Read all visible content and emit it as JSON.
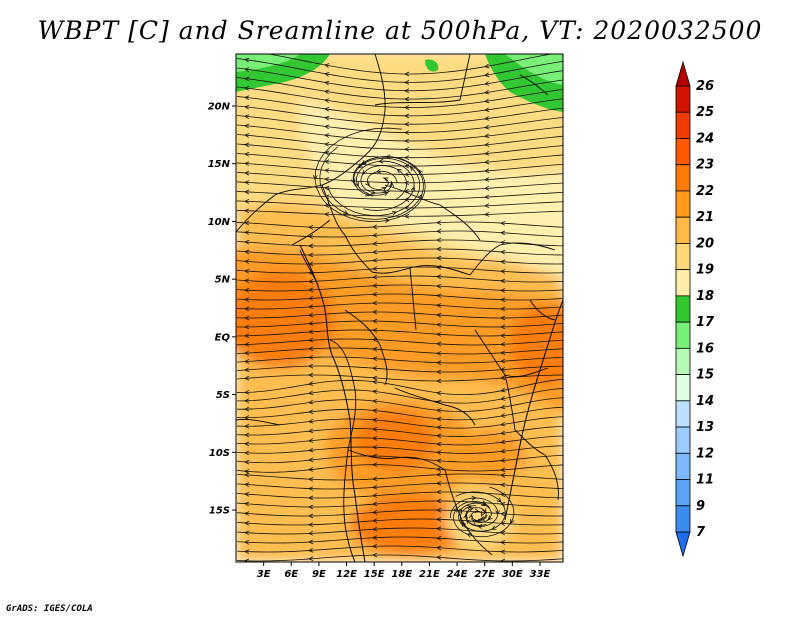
{
  "title": "WBPT [C] and Sreamline at 500hPa, VT: 2020032500",
  "credit": "GrADS: IGES/COLA",
  "map": {
    "lon_range": [
      0,
      35.5
    ],
    "lat_range": [
      -19.5,
      24.5
    ],
    "lat_ticks": [
      {
        "value": 20,
        "label": "20N"
      },
      {
        "value": 15,
        "label": "15N"
      },
      {
        "value": 10,
        "label": "10N"
      },
      {
        "value": 5,
        "label": "5N"
      },
      {
        "value": 0,
        "label": "EQ"
      },
      {
        "value": -5,
        "label": "5S"
      },
      {
        "value": -10,
        "label": "10S"
      },
      {
        "value": -15,
        "label": "15S"
      }
    ],
    "lon_ticks": [
      {
        "value": 3,
        "label": "3E"
      },
      {
        "value": 6,
        "label": "6E"
      },
      {
        "value": 9,
        "label": "9E"
      },
      {
        "value": 12,
        "label": "12E"
      },
      {
        "value": 15,
        "label": "15E"
      },
      {
        "value": 18,
        "label": "18E"
      },
      {
        "value": 21,
        "label": "21E"
      },
      {
        "value": 24,
        "label": "24E"
      },
      {
        "value": 27,
        "label": "27E"
      },
      {
        "value": 30,
        "label": "30E"
      },
      {
        "value": 33,
        "label": "33E"
      }
    ]
  },
  "colorbar": {
    "levels": [
      "7",
      "9",
      "11",
      "12",
      "13",
      "14",
      "15",
      "16",
      "17",
      "18",
      "19",
      "20",
      "21",
      "22",
      "23",
      "24",
      "25",
      "26"
    ],
    "colors": [
      "#1e6eeb",
      "#3c8cf0",
      "#5ba3f5",
      "#7bb9fa",
      "#9ccdff",
      "#bde0ff",
      "#e1ffe1",
      "#b4fab4",
      "#78f078",
      "#32c832",
      "#ffeeaa",
      "#ffd778",
      "#ffb946",
      "#ff9a1e",
      "#ff7a0a",
      "#ff5a00",
      "#f03c00",
      "#d21400",
      "#b40000"
    ]
  },
  "field": {
    "colors": {
      "c18": "#32c832",
      "c17": "#78f078",
      "c19": "#fff0b0",
      "c20": "#ffdc82",
      "c21": "#ffbe50",
      "c22": "#ff9c28",
      "c23": "#ff7d10",
      "c24": "#f06000"
    }
  }
}
